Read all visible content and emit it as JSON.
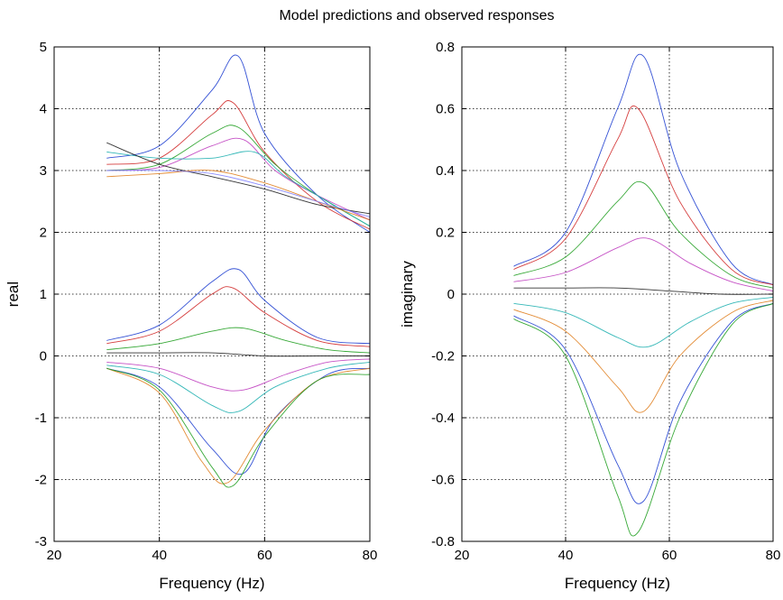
{
  "figure": {
    "title": "Model predictions and observed responses"
  },
  "chart_data": [
    {
      "type": "line",
      "title": "",
      "xlabel": "Frequency (Hz)",
      "ylabel": "real",
      "xlim": [
        20,
        80
      ],
      "ylim": [
        -3,
        5
      ],
      "xticks": [
        20,
        40,
        60,
        80
      ],
      "yticks": [
        -3,
        -2,
        -1,
        0,
        1,
        2,
        3,
        4,
        5
      ],
      "xtick_labels": [
        "20",
        "40",
        "60",
        "80"
      ],
      "ytick_labels": [
        "-3",
        "-2",
        "-1",
        "0",
        "1",
        "2",
        "3",
        "4",
        "5"
      ],
      "grid": true,
      "x_range": [
        30,
        80
      ],
      "series": [
        {
          "color": "#1f3fd0",
          "values": [
            [
              30,
              3.2
            ],
            [
              40,
              3.4
            ],
            [
              50,
              4.3
            ],
            [
              55,
              4.85
            ],
            [
              60,
              3.6
            ],
            [
              70,
              2.6
            ],
            [
              80,
              2.0
            ]
          ]
        },
        {
          "color": "#d02828",
          "values": [
            [
              30,
              3.1
            ],
            [
              40,
              3.2
            ],
            [
              50,
              3.9
            ],
            [
              54,
              4.1
            ],
            [
              60,
              3.3
            ],
            [
              70,
              2.5
            ],
            [
              80,
              2.05
            ]
          ]
        },
        {
          "color": "#22a022",
          "values": [
            [
              30,
              3.0
            ],
            [
              40,
              3.1
            ],
            [
              50,
              3.6
            ],
            [
              55,
              3.7
            ],
            [
              62,
              3.1
            ],
            [
              70,
              2.6
            ],
            [
              80,
              2.1
            ]
          ]
        },
        {
          "color": "#c040c0",
          "values": [
            [
              30,
              3.0
            ],
            [
              40,
              3.05
            ],
            [
              50,
              3.4
            ],
            [
              56,
              3.5
            ],
            [
              62,
              3.0
            ],
            [
              70,
              2.6
            ],
            [
              80,
              2.2
            ]
          ]
        },
        {
          "color": "#20b0b0",
          "values": [
            [
              30,
              3.3
            ],
            [
              40,
              3.2
            ],
            [
              50,
              3.2
            ],
            [
              58,
              3.3
            ],
            [
              64,
              2.9
            ],
            [
              72,
              2.5
            ],
            [
              80,
              2.1
            ]
          ]
        },
        {
          "color": "#202020",
          "values": [
            [
              30,
              3.45
            ],
            [
              40,
              3.1
            ],
            [
              50,
              2.9
            ],
            [
              60,
              2.7
            ],
            [
              70,
              2.45
            ],
            [
              80,
              2.3
            ]
          ]
        },
        {
          "color": "#e08020",
          "values": [
            [
              30,
              2.9
            ],
            [
              40,
              2.95
            ],
            [
              50,
              3.0
            ],
            [
              60,
              2.8
            ],
            [
              70,
              2.5
            ],
            [
              80,
              2.2
            ]
          ]
        },
        {
          "color": "#8080ff",
          "values": [
            [
              30,
              3.0
            ],
            [
              40,
              3.0
            ],
            [
              50,
              2.95
            ],
            [
              60,
              2.75
            ],
            [
              70,
              2.5
            ],
            [
              80,
              2.25
            ]
          ]
        },
        {
          "color": "#1f3fd0",
          "values": [
            [
              30,
              0.25
            ],
            [
              40,
              0.5
            ],
            [
              50,
              1.2
            ],
            [
              55,
              1.4
            ],
            [
              60,
              0.9
            ],
            [
              70,
              0.3
            ],
            [
              80,
              0.2
            ]
          ]
        },
        {
          "color": "#d02828",
          "values": [
            [
              30,
              0.2
            ],
            [
              40,
              0.4
            ],
            [
              50,
              1.0
            ],
            [
              54,
              1.1
            ],
            [
              60,
              0.7
            ],
            [
              70,
              0.25
            ],
            [
              80,
              0.15
            ]
          ]
        },
        {
          "color": "#22a022",
          "values": [
            [
              30,
              0.1
            ],
            [
              40,
              0.2
            ],
            [
              50,
              0.4
            ],
            [
              56,
              0.45
            ],
            [
              64,
              0.25
            ],
            [
              72,
              0.1
            ],
            [
              80,
              0.05
            ]
          ]
        },
        {
          "color": "#202020",
          "values": [
            [
              30,
              0.05
            ],
            [
              40,
              0.05
            ],
            [
              50,
              0.05
            ],
            [
              60,
              0.0
            ],
            [
              70,
              0.0
            ],
            [
              80,
              0.0
            ]
          ]
        },
        {
          "color": "#c040c0",
          "values": [
            [
              30,
              -0.1
            ],
            [
              40,
              -0.2
            ],
            [
              50,
              -0.5
            ],
            [
              56,
              -0.55
            ],
            [
              64,
              -0.3
            ],
            [
              72,
              -0.1
            ],
            [
              80,
              -0.05
            ]
          ]
        },
        {
          "color": "#20b0b0",
          "values": [
            [
              30,
              -0.15
            ],
            [
              40,
              -0.3
            ],
            [
              50,
              -0.8
            ],
            [
              55,
              -0.9
            ],
            [
              62,
              -0.5
            ],
            [
              72,
              -0.2
            ],
            [
              80,
              -0.1
            ]
          ]
        },
        {
          "color": "#1f3fd0",
          "values": [
            [
              30,
              -0.2
            ],
            [
              40,
              -0.5
            ],
            [
              50,
              -1.5
            ],
            [
              56,
              -1.9
            ],
            [
              62,
              -1.0
            ],
            [
              72,
              -0.3
            ],
            [
              80,
              -0.2
            ]
          ]
        },
        {
          "color": "#e08020",
          "values": [
            [
              30,
              -0.2
            ],
            [
              40,
              -0.6
            ],
            [
              48,
              -1.7
            ],
            [
              53,
              -2.05
            ],
            [
              60,
              -1.2
            ],
            [
              70,
              -0.4
            ],
            [
              80,
              -0.2
            ]
          ]
        },
        {
          "color": "#22a022",
          "values": [
            [
              30,
              -0.2
            ],
            [
              40,
              -0.55
            ],
            [
              50,
              -1.8
            ],
            [
              54,
              -2.1
            ],
            [
              60,
              -1.3
            ],
            [
              70,
              -0.4
            ],
            [
              80,
              -0.3
            ]
          ]
        }
      ]
    },
    {
      "type": "line",
      "title": "",
      "xlabel": "Frequency (Hz)",
      "ylabel": "imaginary",
      "xlim": [
        20,
        80
      ],
      "ylim": [
        -0.8,
        0.8
      ],
      "xticks": [
        20,
        40,
        60,
        80
      ],
      "yticks": [
        -0.8,
        -0.6,
        -0.4,
        -0.2,
        0,
        0.2,
        0.4,
        0.6,
        0.8
      ],
      "xtick_labels": [
        "20",
        "40",
        "60",
        "80"
      ],
      "ytick_labels": [
        "-0.8",
        "-0.6",
        "-0.4",
        "-0.2",
        "0",
        "0.2",
        "0.4",
        "0.6",
        "0.8"
      ],
      "grid": true,
      "x_range": [
        30,
        80
      ],
      "series": [
        {
          "color": "#1f3fd0",
          "values": [
            [
              30,
              0.09
            ],
            [
              40,
              0.2
            ],
            [
              50,
              0.6
            ],
            [
              55,
              0.77
            ],
            [
              62,
              0.4
            ],
            [
              72,
              0.1
            ],
            [
              80,
              0.03
            ]
          ]
        },
        {
          "color": "#d02828",
          "values": [
            [
              30,
              0.08
            ],
            [
              40,
              0.18
            ],
            [
              50,
              0.5
            ],
            [
              54,
              0.6
            ],
            [
              62,
              0.3
            ],
            [
              72,
              0.08
            ],
            [
              80,
              0.03
            ]
          ]
        },
        {
          "color": "#22a022",
          "values": [
            [
              30,
              0.06
            ],
            [
              40,
              0.12
            ],
            [
              50,
              0.3
            ],
            [
              55,
              0.36
            ],
            [
              62,
              0.2
            ],
            [
              72,
              0.06
            ],
            [
              80,
              0.02
            ]
          ]
        },
        {
          "color": "#c040c0",
          "values": [
            [
              30,
              0.04
            ],
            [
              40,
              0.07
            ],
            [
              50,
              0.15
            ],
            [
              56,
              0.18
            ],
            [
              64,
              0.1
            ],
            [
              72,
              0.04
            ],
            [
              80,
              0.01
            ]
          ]
        },
        {
          "color": "#202020",
          "values": [
            [
              30,
              0.02
            ],
            [
              40,
              0.02
            ],
            [
              50,
              0.02
            ],
            [
              60,
              0.01
            ],
            [
              70,
              0.0
            ],
            [
              80,
              0.0
            ]
          ]
        },
        {
          "color": "#20b0b0",
          "values": [
            [
              30,
              -0.03
            ],
            [
              40,
              -0.06
            ],
            [
              50,
              -0.14
            ],
            [
              56,
              -0.17
            ],
            [
              64,
              -0.09
            ],
            [
              72,
              -0.03
            ],
            [
              80,
              -0.01
            ]
          ]
        },
        {
          "color": "#e08020",
          "values": [
            [
              30,
              -0.05
            ],
            [
              40,
              -0.12
            ],
            [
              50,
              -0.3
            ],
            [
              55,
              -0.38
            ],
            [
              62,
              -0.2
            ],
            [
              72,
              -0.06
            ],
            [
              80,
              -0.02
            ]
          ]
        },
        {
          "color": "#1f3fd0",
          "values": [
            [
              30,
              -0.07
            ],
            [
              40,
              -0.18
            ],
            [
              50,
              -0.55
            ],
            [
              55,
              -0.67
            ],
            [
              62,
              -0.35
            ],
            [
              72,
              -0.09
            ],
            [
              80,
              -0.03
            ]
          ]
        },
        {
          "color": "#22a022",
          "values": [
            [
              30,
              -0.08
            ],
            [
              40,
              -0.2
            ],
            [
              50,
              -0.65
            ],
            [
              54,
              -0.77
            ],
            [
              62,
              -0.4
            ],
            [
              72,
              -0.1
            ],
            [
              80,
              -0.03
            ]
          ]
        }
      ]
    }
  ]
}
